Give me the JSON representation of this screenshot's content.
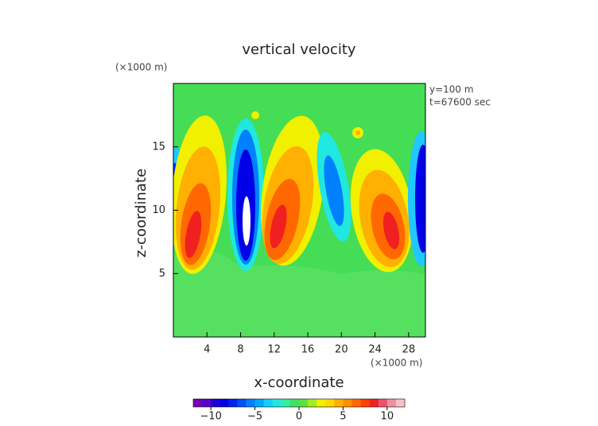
{
  "chart_data": {
    "type": "contour",
    "title": "vertical velocity",
    "x_label": "x-coordinate",
    "y_label": "z-coordinate",
    "x_unit": "(×1000 m)",
    "y_unit": "(×1000 m)",
    "annotations": [
      "y=100 m",
      "t=67600 sec"
    ],
    "xlim": [
      0,
      30
    ],
    "xticks": [
      4,
      8,
      12,
      16,
      20,
      24,
      28
    ],
    "ylim": [
      0,
      20
    ],
    "yticks": [
      5,
      10,
      15
    ],
    "colorbar": {
      "lim": [
        -12,
        12
      ],
      "ticks": [
        {
          "value": -10,
          "label": "−10"
        },
        {
          "value": -5,
          "label": "−5"
        },
        0,
        5,
        10
      ],
      "colors": [
        "#7a00b0",
        "#5a00c8",
        "#2000d8",
        "#0000e8",
        "#0020f0",
        "#0050f8",
        "#0080ff",
        "#00a8ff",
        "#10d0ff",
        "#20e8e0",
        "#30f0a0",
        "#40e060",
        "#60e040",
        "#a0f020",
        "#f0f000",
        "#ffd800",
        "#ffb000",
        "#ff9000",
        "#ff6800",
        "#ff4000",
        "#f02020",
        "#f05070",
        "#f090a0",
        "#f8c0c8"
      ]
    }
  }
}
